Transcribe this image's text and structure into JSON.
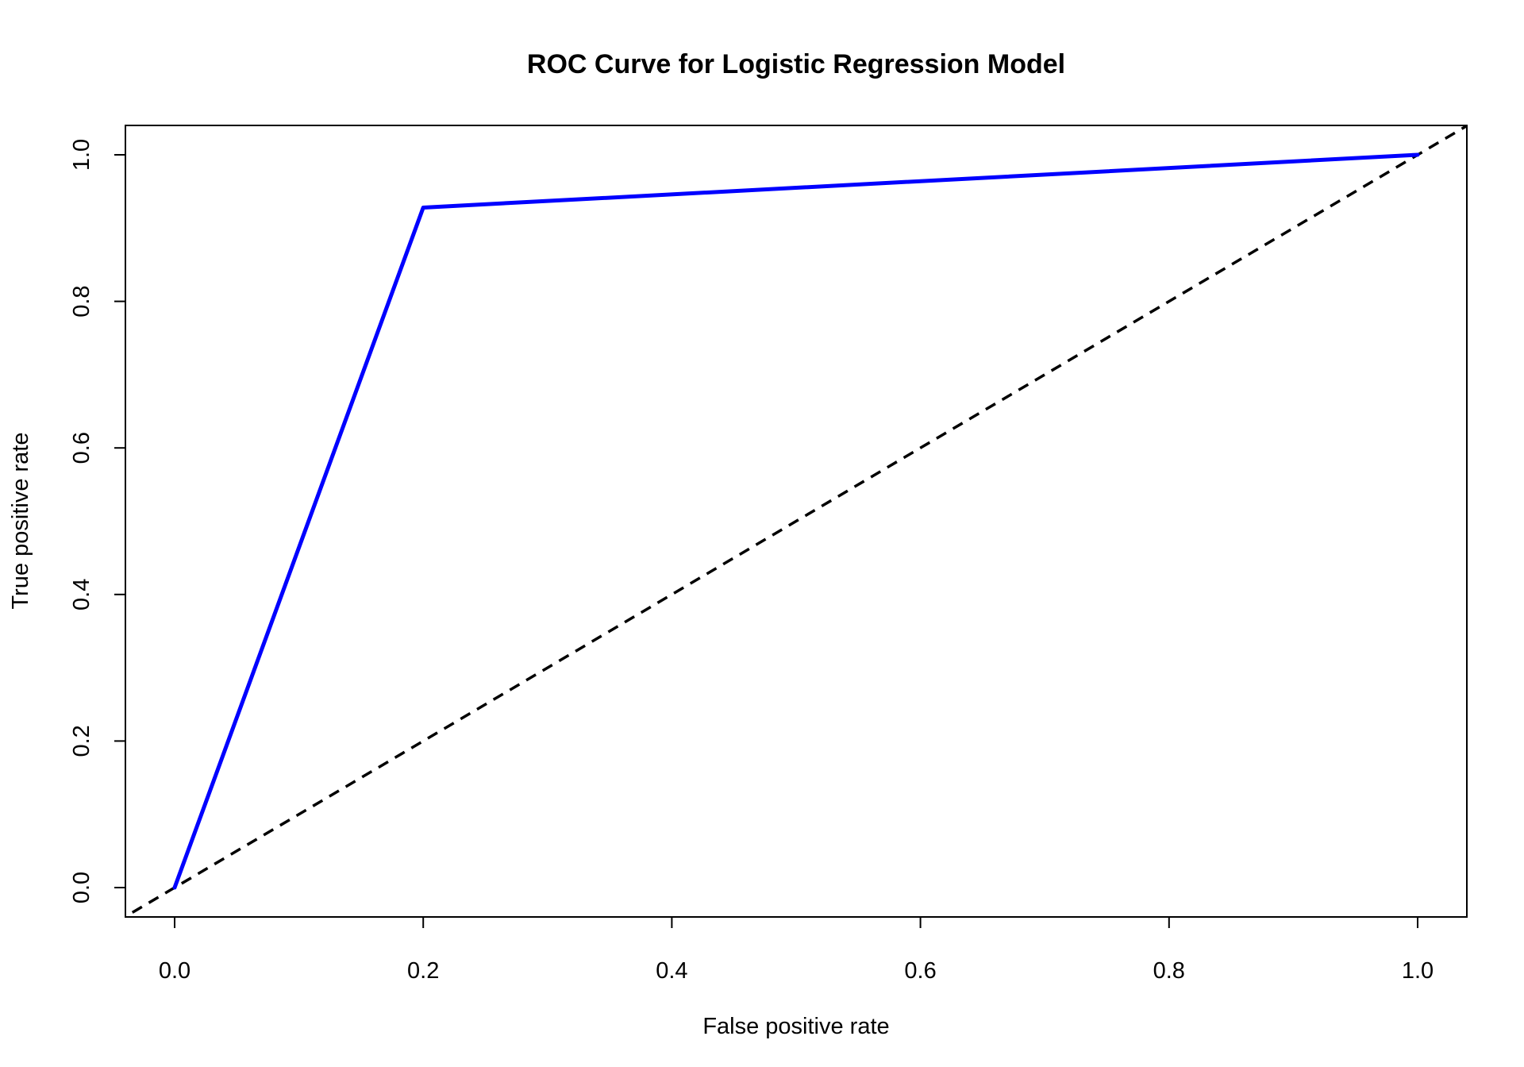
{
  "chart_data": {
    "type": "line",
    "title": "ROC Curve for Logistic Regression Model",
    "xlabel": "False positive rate",
    "ylabel": "True positive rate",
    "xlim": [
      0,
      1
    ],
    "ylim": [
      0,
      1
    ],
    "xticks": [
      0.0,
      0.2,
      0.4,
      0.6,
      0.8,
      1.0
    ],
    "xtick_labels": [
      "0.0",
      "0.2",
      "0.4",
      "0.6",
      "0.8",
      "1.0"
    ],
    "yticks": [
      0.0,
      0.2,
      0.4,
      0.6,
      0.8,
      1.0
    ],
    "ytick_labels": [
      "0.0",
      "0.2",
      "0.4",
      "0.6",
      "0.8",
      "1.0"
    ],
    "grid": false,
    "series": [
      {
        "style": "solid",
        "color": "#0000ff",
        "x": [
          0.0,
          0.2,
          1.0
        ],
        "y": [
          0.0,
          0.928,
          1.0
        ]
      }
    ],
    "reference_line": {
      "style": "dashed",
      "color": "#000000",
      "intercept": 0,
      "slope": 1
    }
  }
}
